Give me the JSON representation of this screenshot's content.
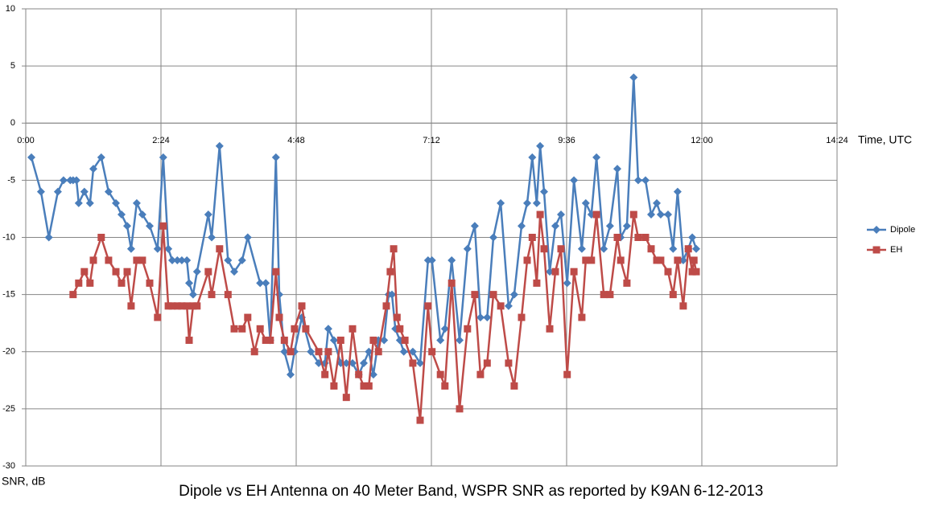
{
  "chart_data": {
    "type": "line",
    "title": "Dipole vs EH Antenna on 40 Meter Band, WSPR SNR as reported by K9AN",
    "date": "6-12-2013",
    "x_label": "Time, UTC",
    "y_label": "SNR, dB",
    "xlim": [
      0,
      14.4
    ],
    "ylim": [
      -30,
      10
    ],
    "xticks": [
      {
        "value": 0,
        "label": "0:00"
      },
      {
        "value": 2.4,
        "label": "2:24"
      },
      {
        "value": 4.8,
        "label": "4:48"
      },
      {
        "value": 7.2,
        "label": "7:12"
      },
      {
        "value": 9.6,
        "label": "9:36"
      },
      {
        "value": 12,
        "label": "12:00"
      },
      {
        "value": 14.4,
        "label": "14:24"
      }
    ],
    "yticks": [
      -30,
      -25,
      -20,
      -15,
      -10,
      -5,
      0,
      5,
      10
    ],
    "grid": true,
    "legend": "right",
    "series": [
      {
        "name": "Dipole",
        "color": "#4a7ebb",
        "marker": "diamond",
        "x": [
          0.1,
          0.27,
          0.41,
          0.57,
          0.67,
          0.79,
          0.84,
          0.9,
          0.94,
          1.04,
          1.14,
          1.2,
          1.34,
          1.47,
          1.6,
          1.7,
          1.8,
          1.87,
          1.97,
          2.07,
          2.2,
          2.34,
          2.44,
          2.53,
          2.6,
          2.69,
          2.77,
          2.86,
          2.9,
          2.97,
          3.04,
          3.24,
          3.3,
          3.44,
          3.59,
          3.7,
          3.84,
          3.94,
          4.16,
          4.26,
          4.34,
          4.44,
          4.5,
          4.59,
          4.7,
          4.77,
          4.9,
          5.06,
          5.2,
          5.31,
          5.37,
          5.47,
          5.59,
          5.69,
          5.8,
          5.91,
          6.0,
          6.09,
          6.17,
          6.26,
          6.36,
          6.44,
          6.5,
          6.56,
          6.64,
          6.71,
          6.87,
          7.0,
          7.14,
          7.21,
          7.36,
          7.44,
          7.56,
          7.7,
          7.84,
          7.97,
          8.07,
          8.19,
          8.3,
          8.43,
          8.57,
          8.67,
          8.8,
          8.9,
          8.99,
          9.07,
          9.13,
          9.2,
          9.3,
          9.4,
          9.5,
          9.61,
          9.73,
          9.87,
          9.94,
          10.04,
          10.13,
          10.26,
          10.37,
          10.5,
          10.56,
          10.67,
          10.79,
          10.87,
          11.0,
          11.1,
          11.2,
          11.27,
          11.4,
          11.49,
          11.57,
          11.67,
          11.76,
          11.83,
          11.9
        ],
        "values": [
          -3,
          -6,
          -10,
          -6,
          -5,
          -5,
          -5,
          -5,
          -7,
          -6,
          -7,
          -4,
          -3,
          -6,
          -7,
          -8,
          -9,
          -11,
          -7,
          -8,
          -9,
          -11,
          -3,
          -11,
          -12,
          -12,
          -12,
          -12,
          -14,
          -15,
          -13,
          -8,
          -10,
          -2,
          -12,
          -13,
          -12,
          -10,
          -14,
          -14,
          -19,
          -3,
          -15,
          -20,
          -22,
          -20,
          -17,
          -20,
          -21,
          -21,
          -18,
          -19,
          -21,
          -21,
          -21,
          -22,
          -21,
          -20,
          -22,
          -19,
          -19,
          -15,
          -15,
          -18,
          -19,
          -20,
          -20,
          -21,
          -12,
          -12,
          -19,
          -18,
          -12,
          -19,
          -11,
          -9,
          -17,
          -17,
          -10,
          -7,
          -16,
          -15,
          -9,
          -7,
          -3,
          -7,
          -2,
          -6,
          -13,
          -9,
          -8,
          -14,
          -5,
          -11,
          -7,
          -8,
          -3,
          -11,
          -9,
          -4,
          -10,
          -9,
          4,
          -5,
          -5,
          -8,
          -7,
          -8,
          -8,
          -11,
          -6,
          -12,
          -11,
          -10,
          -11
        ]
      },
      {
        "name": "EH",
        "color": "#be4b48",
        "marker": "square",
        "x": [
          0.84,
          0.94,
          1.04,
          1.14,
          1.2,
          1.34,
          1.47,
          1.6,
          1.7,
          1.8,
          1.87,
          1.97,
          2.07,
          2.2,
          2.34,
          2.44,
          2.53,
          2.6,
          2.69,
          2.77,
          2.86,
          2.9,
          2.97,
          3.04,
          3.24,
          3.3,
          3.44,
          3.59,
          3.7,
          3.84,
          3.94,
          4.06,
          4.16,
          4.26,
          4.34,
          4.44,
          4.5,
          4.59,
          4.7,
          4.77,
          4.9,
          4.97,
          5.2,
          5.31,
          5.37,
          5.47,
          5.59,
          5.69,
          5.8,
          5.91,
          6.0,
          6.09,
          6.17,
          6.26,
          6.4,
          6.47,
          6.53,
          6.59,
          6.64,
          6.73,
          6.87,
          7.0,
          7.14,
          7.21,
          7.36,
          7.44,
          7.56,
          7.7,
          7.84,
          7.97,
          8.07,
          8.19,
          8.3,
          8.43,
          8.57,
          8.67,
          8.8,
          8.9,
          8.99,
          9.07,
          9.13,
          9.2,
          9.3,
          9.4,
          9.5,
          9.61,
          9.73,
          9.87,
          9.94,
          10.04,
          10.13,
          10.26,
          10.37,
          10.5,
          10.56,
          10.67,
          10.79,
          10.87,
          11.0,
          11.1,
          11.2,
          11.27,
          11.4,
          11.49,
          11.57,
          11.67,
          11.76,
          11.83,
          11.86,
          11.9
        ],
        "values": [
          -15,
          -14,
          -13,
          -14,
          -12,
          -10,
          -12,
          -13,
          -14,
          -13,
          -16,
          -12,
          -12,
          -14,
          -17,
          -9,
          -16,
          -16,
          -16,
          -16,
          -16,
          -19,
          -16,
          -16,
          -13,
          -15,
          -11,
          -15,
          -18,
          -18,
          -17,
          -20,
          -18,
          -19,
          -19,
          -13,
          -17,
          -19,
          -20,
          -18,
          -16,
          -18,
          -20,
          -22,
          -20,
          -23,
          -19,
          -24,
          -18,
          -22,
          -23,
          -23,
          -19,
          -20,
          -16,
          -13,
          -11,
          -17,
          -18,
          -19,
          -21,
          -26,
          -16,
          -20,
          -22,
          -23,
          -14,
          -25,
          -18,
          -15,
          -22,
          -21,
          -15,
          -16,
          -21,
          -23,
          -17,
          -12,
          -10,
          -14,
          -8,
          -11,
          -18,
          -13,
          -11,
          -22,
          -13,
          -17,
          -12,
          -12,
          -8,
          -15,
          -15,
          -10,
          -12,
          -14,
          -8,
          -10,
          -10,
          -11,
          -12,
          -12,
          -13,
          -15,
          -12,
          -16,
          -11,
          -13,
          -12,
          -13
        ]
      }
    ]
  }
}
